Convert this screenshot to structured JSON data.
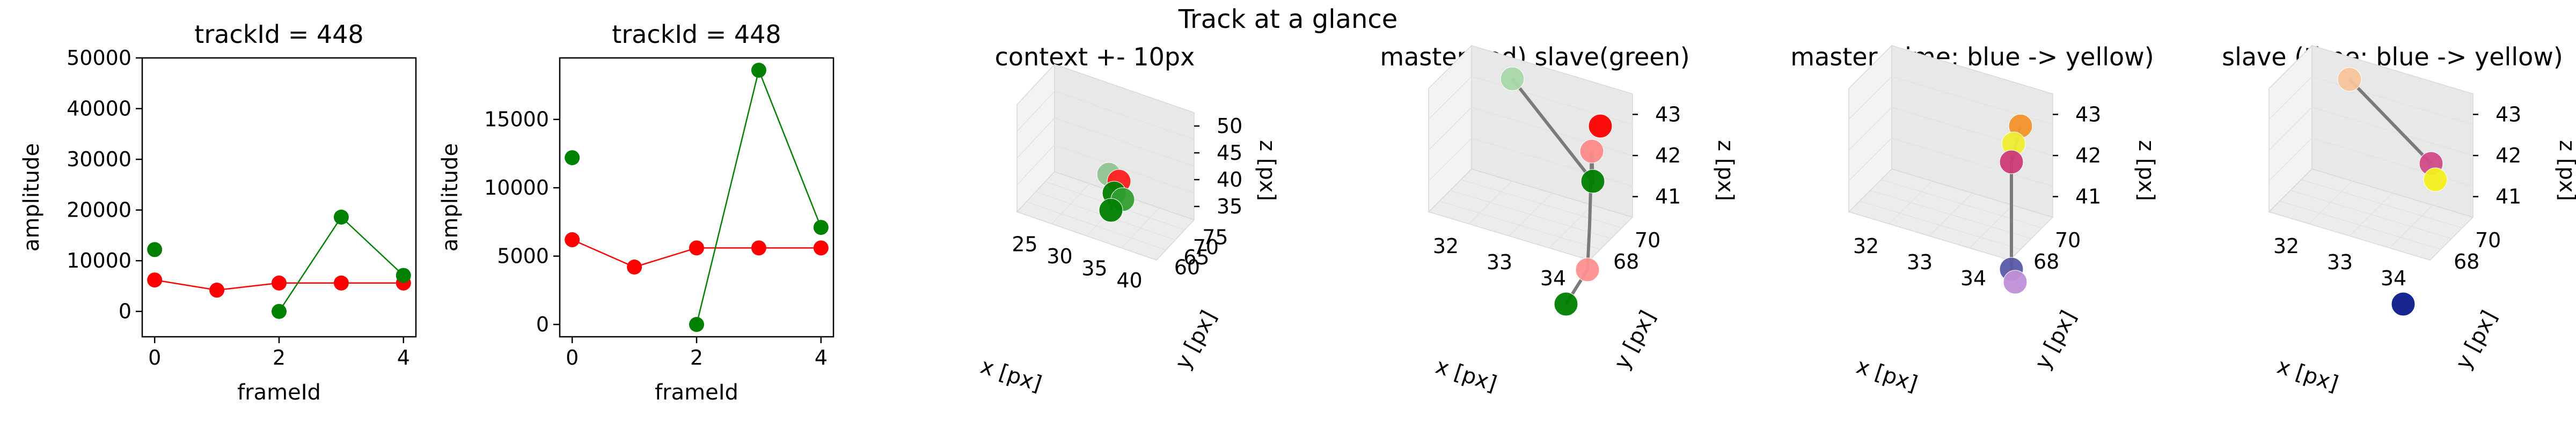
{
  "figure": {
    "suptitle": "Track at a glance"
  },
  "chart_data": [
    {
      "type": "line",
      "title": "trackId = 448",
      "xlabel": "frameId",
      "ylabel": "amplitude",
      "xlim": [
        -0.2,
        4.2
      ],
      "ylim": [
        -5000,
        50000
      ],
      "xticks": [
        "0",
        "2",
        "4"
      ],
      "yticks": [
        "0",
        "10000",
        "20000",
        "30000",
        "40000",
        "50000"
      ],
      "grid": false,
      "series": [
        {
          "color": "#ff0000",
          "x": [
            0,
            1,
            2,
            3,
            4
          ],
          "y": [
            6200,
            4200,
            5600,
            5600,
            5600
          ]
        },
        {
          "color": "#008000",
          "x": [
            2,
            3,
            4
          ],
          "y": [
            0,
            18600,
            7100
          ],
          "extra_points": [
            {
              "x": 0,
              "y": 12200
            }
          ]
        }
      ]
    },
    {
      "type": "line",
      "title": "trackId = 448",
      "xlabel": "frameId",
      "ylabel": "amplitude",
      "xlim": [
        -0.2,
        4.2
      ],
      "ylim": [
        -900,
        19500
      ],
      "xticks": [
        "0",
        "2",
        "4"
      ],
      "yticks": [
        "0",
        "5000",
        "10000",
        "15000"
      ],
      "grid": false,
      "series": [
        {
          "color": "#ff0000",
          "x": [
            0,
            1,
            2,
            3,
            4
          ],
          "y": [
            6200,
            4200,
            5600,
            5600,
            5600
          ]
        },
        {
          "color": "#008000",
          "x": [
            2,
            3,
            4
          ],
          "y": [
            0,
            18600,
            7100
          ],
          "extra_points": [
            {
              "x": 0,
              "y": 12200
            }
          ]
        }
      ]
    },
    {
      "type": "scatter",
      "title": "context +- 10px",
      "xlabel": "x [px]",
      "ylabel": "y [px]",
      "zlabel": "z [px]",
      "xticks": [
        "25",
        "30",
        "35",
        "40"
      ],
      "yticks": [
        "60",
        "65",
        "70",
        "75"
      ],
      "zticks": [
        "35",
        "40",
        "45",
        "50"
      ],
      "point_colors": [
        "#90c490",
        "#ff2020",
        "#008000",
        "#30a030",
        "#008000"
      ]
    },
    {
      "type": "scatter",
      "title": "master(red) slave(green)",
      "xlabel": "x [px]",
      "ylabel": "y [px]",
      "zlabel": "z [px]",
      "xticks": [
        "32",
        "33",
        "34"
      ],
      "yticks": [
        "68",
        "70"
      ],
      "zticks": [
        "41",
        "42",
        "43"
      ],
      "point_colors": [
        "#ff0000",
        "#ff8a8a",
        "#008000",
        "#ff9090",
        "#a8d8a8",
        "#008000"
      ]
    },
    {
      "type": "scatter",
      "title": "master (time: blue -> yellow)",
      "xlabel": "x [px]",
      "ylabel": "y [px]",
      "zlabel": "z [px]",
      "xticks": [
        "32",
        "33",
        "34"
      ],
      "yticks": [
        "68",
        "70"
      ],
      "zticks": [
        "41",
        "42",
        "43"
      ],
      "point_colors": [
        "#f5912d",
        "#eeee30",
        "#cc3a78",
        "#5a5aa8",
        "#c090d8"
      ]
    },
    {
      "type": "scatter",
      "title": "slave (time: blue -> yellow)",
      "xlabel": "x [px]",
      "ylabel": "y [px]",
      "zlabel": "z [px]",
      "xticks": [
        "32",
        "33",
        "34"
      ],
      "yticks": [
        "68",
        "70"
      ],
      "zticks": [
        "41",
        "42",
        "43"
      ],
      "point_colors": [
        "#f7c49a",
        "#d04a88",
        "#f4f020",
        "#0c1a8c"
      ]
    }
  ]
}
